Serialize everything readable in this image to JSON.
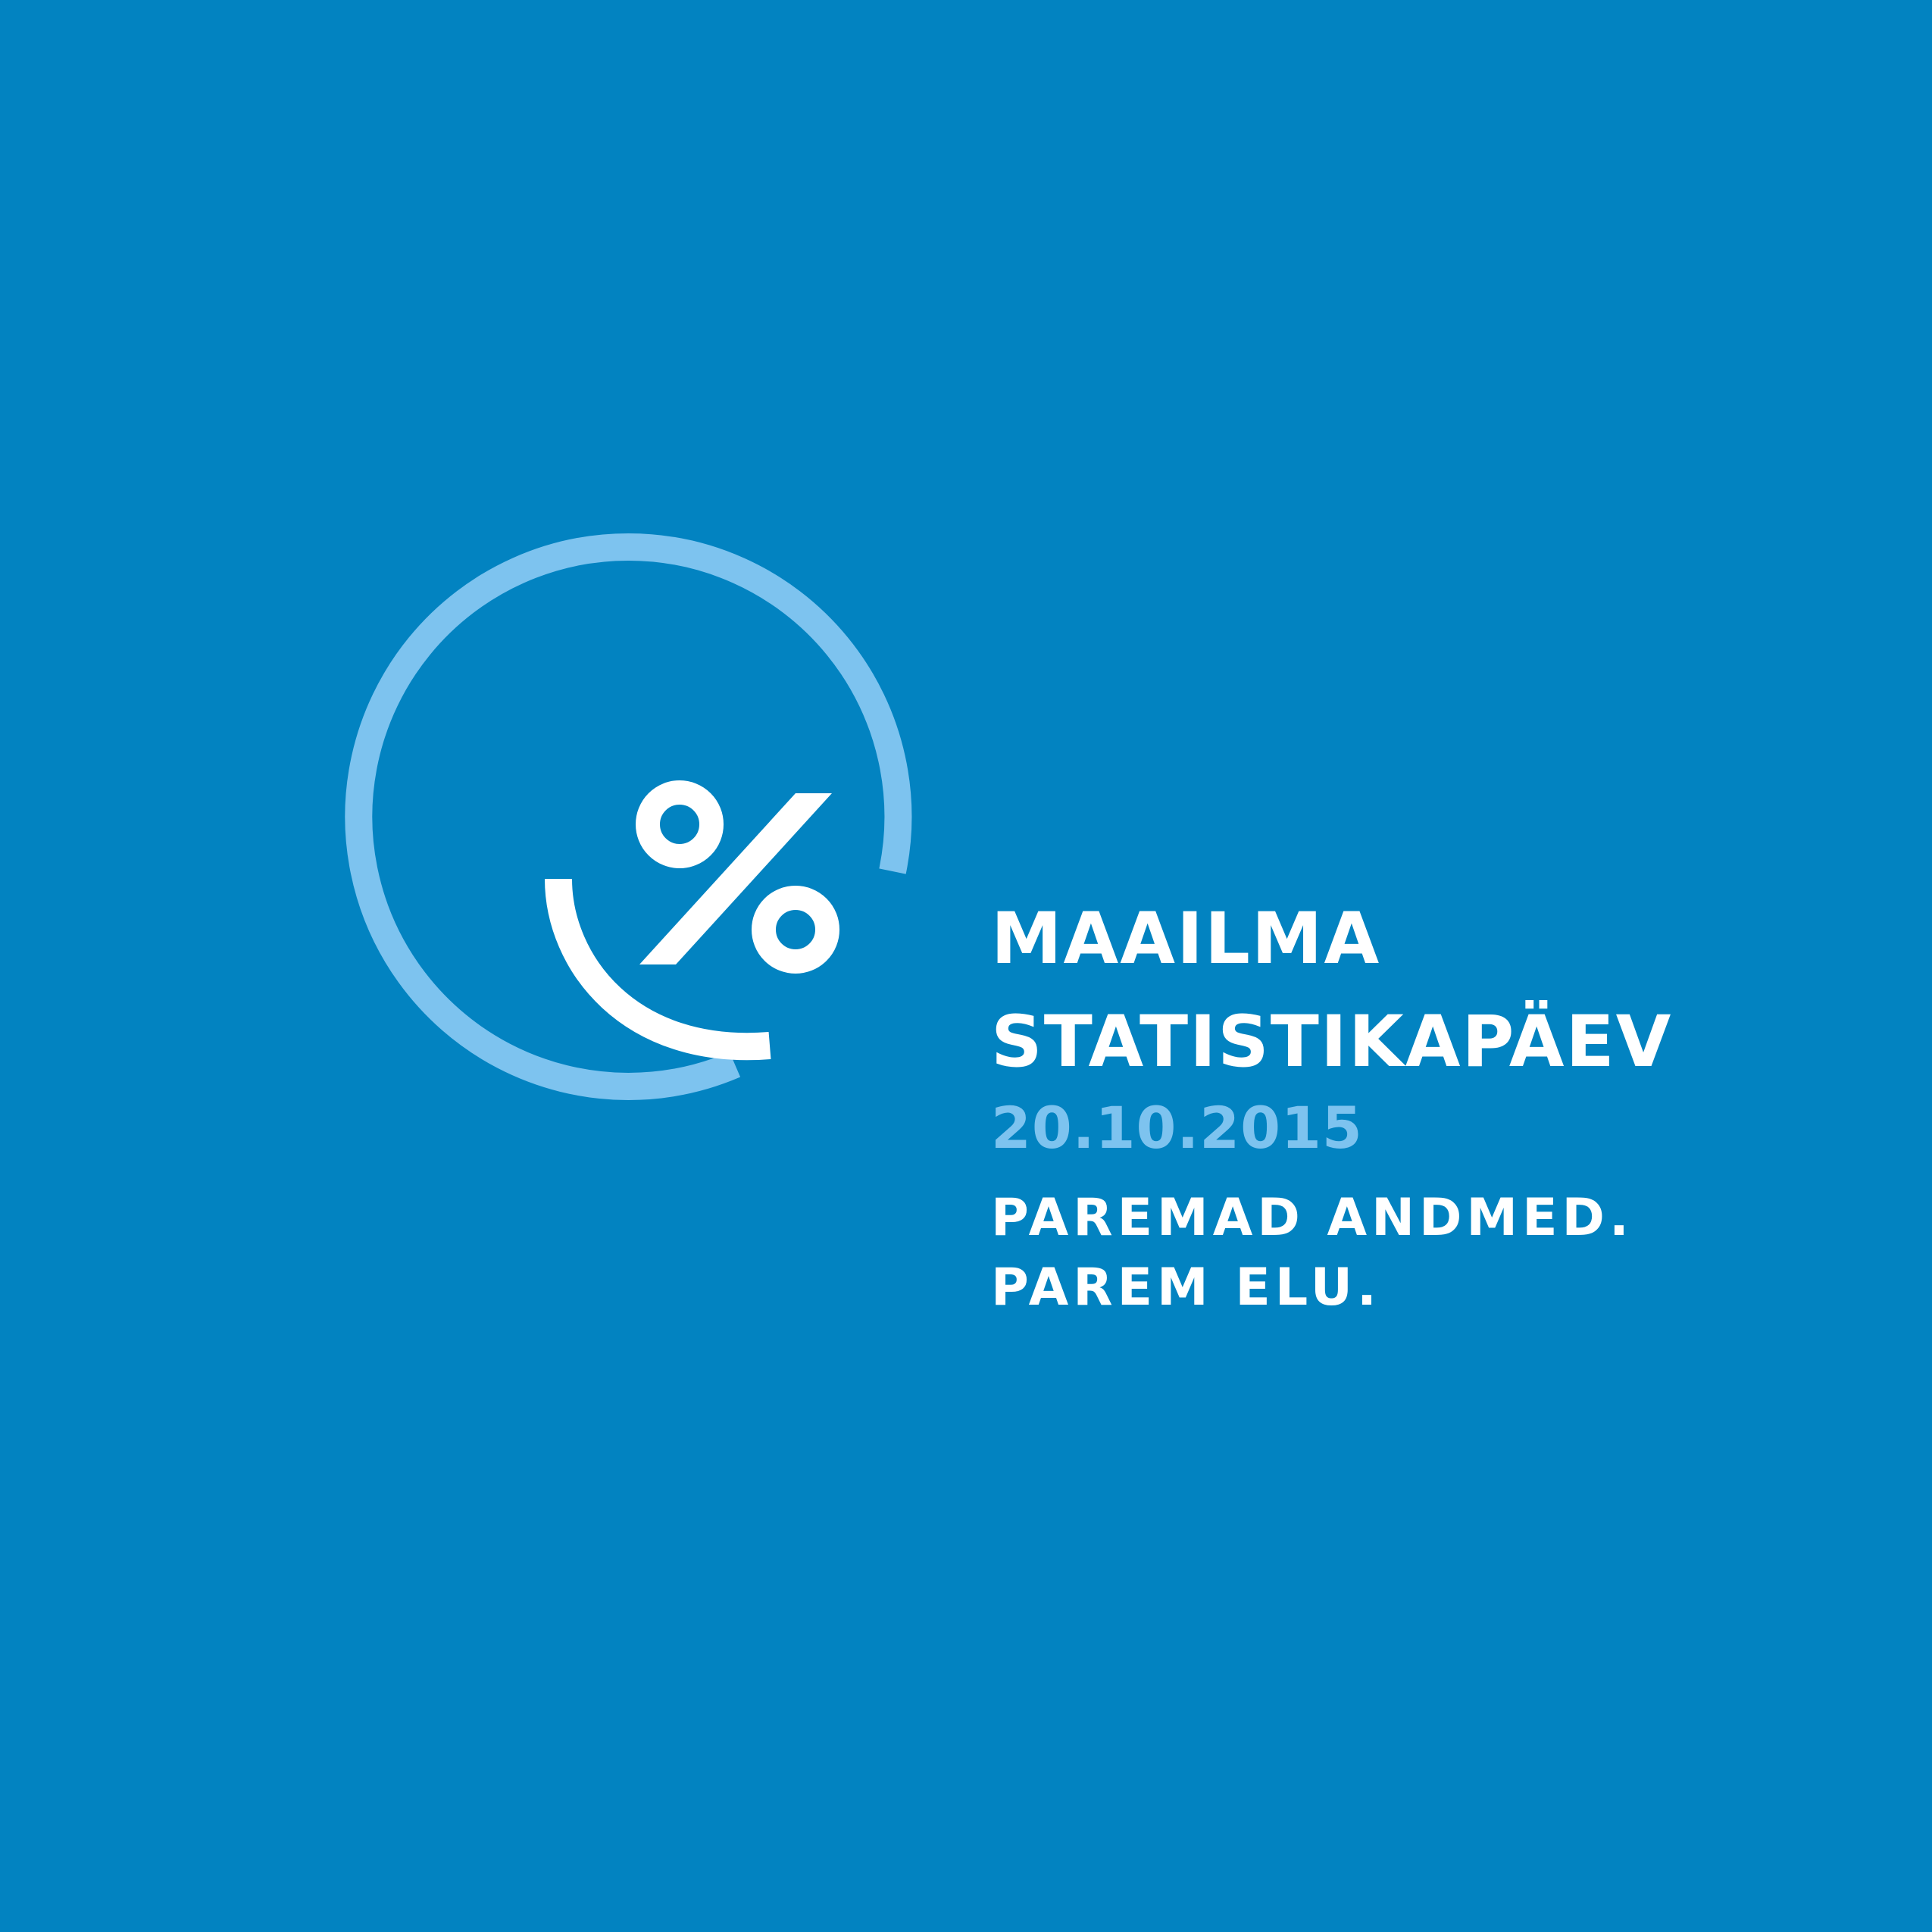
{
  "colors": {
    "background": "#0283c1",
    "primary_text": "#ffffff",
    "accent_light_blue": "#7dc3ef"
  },
  "logo": {
    "icon": "percent-smile-circle-icon"
  },
  "title": {
    "line1": "MAAILMA",
    "line2": "STATISTIKAPÄEV"
  },
  "date": "20.10.2015",
  "slogan": {
    "line1": "PAREMAD ANDMED.",
    "line2": "PAREM ELU."
  }
}
